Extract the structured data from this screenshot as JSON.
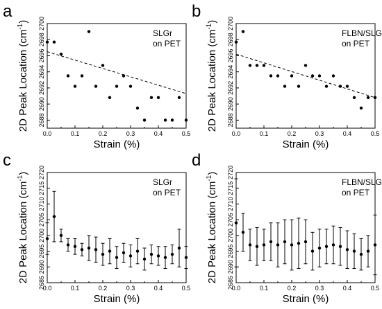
{
  "chart_data": [
    {
      "type": "scatter",
      "panel_label": "a",
      "annotation": [
        "SLGr",
        "on PET"
      ],
      "xlabel": "Strain (%)",
      "ylabel_main": "2D Peak Location (cm",
      "ylabel_sup": "-1",
      "ylabel_close": ")",
      "xlim": [
        0,
        0.5
      ],
      "ylim": [
        2687,
        2700
      ],
      "xticks": [
        "0.0",
        "0.1",
        "0.2",
        "0.3",
        "0.4",
        "0.5"
      ],
      "yticks": [
        "2688",
        "2690",
        "2692",
        "2694",
        "2696",
        "2698",
        "2700"
      ],
      "fit_line": [
        [
          0,
          2696.5
        ],
        [
          0.5,
          2691.3
        ]
      ],
      "series": [
        {
          "x": [
            0,
            0.025,
            0.05,
            0.075,
            0.1,
            0.125,
            0.15,
            0.175,
            0.2,
            0.225,
            0.25,
            0.275,
            0.3,
            0.325,
            0.35,
            0.375,
            0.4,
            0.425,
            0.45,
            0.475,
            0.5
          ],
          "y": [
            2697.7,
            2697.7,
            2696.2,
            2693.5,
            2692.2,
            2693.5,
            2699,
            2692.2,
            2694.8,
            2690.8,
            2692.2,
            2693.5,
            2692.2,
            2689.5,
            2688,
            2690.8,
            2690.8,
            2688,
            2688,
            2690.8,
            2688
          ]
        }
      ]
    },
    {
      "type": "scatter",
      "panel_label": "b",
      "annotation": [
        "FLBN/SLGr",
        "on PET"
      ],
      "xlabel": "Strain (%)",
      "ylabel_main": "2D Peak Location (cm",
      "ylabel_sup": "-1",
      "ylabel_close": ")",
      "xlim": [
        0,
        0.5
      ],
      "ylim": [
        2687,
        2700
      ],
      "xticks": [
        "0.0",
        "0.1",
        "0.2",
        "0.3",
        "0.4",
        "0.5"
      ],
      "yticks": [
        "2688",
        "2690",
        "2692",
        "2694",
        "2696",
        "2698",
        "2700"
      ],
      "fit_line": [
        [
          0,
          2696.2
        ],
        [
          0.5,
          2690.8
        ]
      ],
      "series": [
        {
          "x": [
            0,
            0.025,
            0.05,
            0.075,
            0.1,
            0.125,
            0.15,
            0.175,
            0.2,
            0.225,
            0.25,
            0.275,
            0.3,
            0.325,
            0.35,
            0.375,
            0.4,
            0.425,
            0.45,
            0.475,
            0.5
          ],
          "y": [
            2697.7,
            2699,
            2694.8,
            2694.8,
            2694.8,
            2693.5,
            2693.5,
            2692.2,
            2693.5,
            2692.2,
            2694.8,
            2693.5,
            2693.5,
            2692.2,
            2693.5,
            2692.2,
            2692.2,
            2690.8,
            2689.5,
            2690.8,
            2690.8
          ]
        }
      ]
    },
    {
      "type": "scatter",
      "panel_label": "c",
      "annotation": [
        "SLGr",
        "on PET"
      ],
      "xlabel": "Strain (%)",
      "ylabel_main": "2D Peak Location (cm",
      "ylabel_sup": "-1",
      "ylabel_close": ")",
      "xlim": [
        0,
        0.5
      ],
      "ylim": [
        2685,
        2720
      ],
      "xticks": [
        "0.0",
        "0.1",
        "0.2",
        "0.3",
        "0.4",
        "0.5"
      ],
      "yticks": [
        "2685",
        "2690",
        "2695",
        "2700",
        "2705",
        "2710",
        "2715",
        "2720"
      ],
      "series": [
        {
          "x": [
            0,
            0.025,
            0.05,
            0.075,
            0.1,
            0.125,
            0.15,
            0.175,
            0.2,
            0.225,
            0.25,
            0.275,
            0.3,
            0.325,
            0.35,
            0.375,
            0.4,
            0.425,
            0.45,
            0.475,
            0.5
          ],
          "y": [
            2699,
            2706,
            2700,
            2697,
            2696.5,
            2695.5,
            2696,
            2695.5,
            2694,
            2695,
            2693,
            2694.5,
            2693.5,
            2695,
            2692.5,
            2694,
            2693.5,
            2693,
            2694,
            2696,
            2693
          ],
          "err": [
            5,
            8,
            2,
            2,
            2.5,
            2,
            4,
            4,
            3.5,
            4,
            3.5,
            3,
            3.5,
            4,
            3.5,
            3,
            3,
            3.5,
            3,
            6,
            3.5
          ]
        }
      ]
    },
    {
      "type": "scatter",
      "panel_label": "d",
      "annotation": [
        "FLBN/SLGr",
        "on PET"
      ],
      "xlabel": "Strain (%)",
      "ylabel_main": "2D Peak Location (cm",
      "ylabel_sup": "-1",
      "ylabel_close": ")",
      "xlim": [
        0,
        0.5
      ],
      "ylim": [
        2685,
        2720
      ],
      "xticks": [
        "0.0",
        "0.1",
        "0.2",
        "0.3",
        "0.4",
        "0.5"
      ],
      "yticks": [
        "2685",
        "2690",
        "2695",
        "2700",
        "2705",
        "2710",
        "2715",
        "2720"
      ],
      "series": [
        {
          "x": [
            0,
            0.025,
            0.05,
            0.075,
            0.1,
            0.125,
            0.15,
            0.175,
            0.2,
            0.225,
            0.25,
            0.275,
            0.3,
            0.325,
            0.35,
            0.375,
            0.4,
            0.425,
            0.45,
            0.475,
            0.5
          ],
          "y": [
            2704,
            2701,
            2697,
            2696.5,
            2697,
            2698,
            2697,
            2698,
            2697,
            2697.5,
            2698,
            2695,
            2696,
            2696.5,
            2697,
            2696.5,
            2695.5,
            2695,
            2694,
            2695,
            2697
          ],
          "err": [
            14,
            6,
            5,
            6,
            5,
            6,
            7,
            7,
            8,
            8,
            7,
            6,
            6,
            5.5,
            6,
            6,
            6,
            5.5,
            5,
            5,
            9.5
          ]
        }
      ]
    }
  ]
}
